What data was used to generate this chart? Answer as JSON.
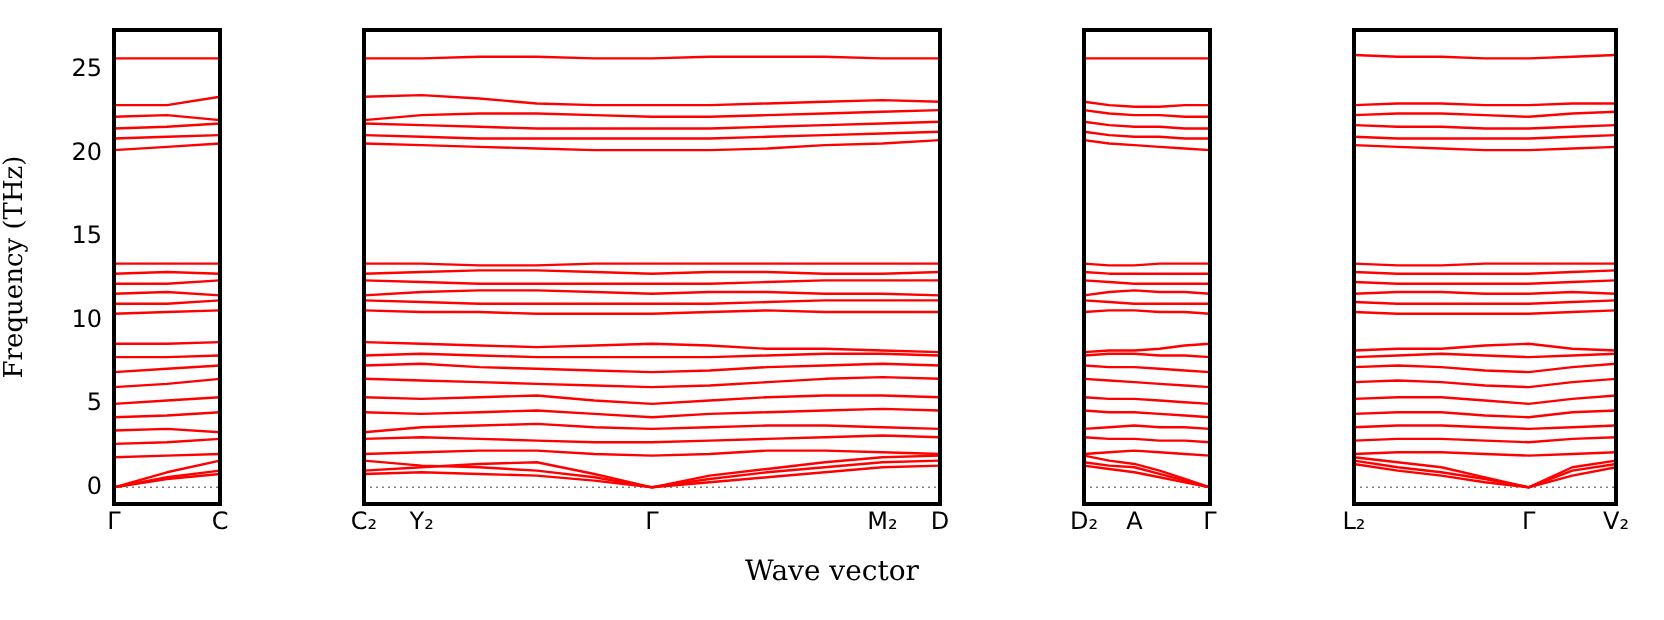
{
  "chart_data": [
    {
      "type": "line",
      "ylabel": "Frequency (THz)",
      "color": "#ff0000",
      "marker": "none",
      "categories": [
        "Γ",
        null,
        "C"
      ],
      "ylim": [
        -1,
        27.4
      ],
      "yticks": [
        0,
        5,
        10,
        15,
        20,
        25
      ],
      "ref_lines": [
        {
          "axis": "y",
          "value": 0,
          "color": "#808080",
          "line_style": "dotted"
        }
      ],
      "series": [
        {
          "values": [
            0,
            0.9,
            1.6
          ]
        },
        {
          "values": [
            0,
            0.5,
            0.8
          ]
        },
        {
          "values": [
            0,
            0.6,
            1.0
          ]
        },
        {
          "values": [
            1.8,
            1.9,
            2.0
          ]
        },
        {
          "values": [
            2.6,
            2.7,
            2.9
          ]
        },
        {
          "values": [
            3.4,
            3.5,
            3.3
          ]
        },
        {
          "values": [
            4.2,
            4.3,
            4.5
          ]
        },
        {
          "values": [
            5.0,
            5.2,
            5.4
          ]
        },
        {
          "values": [
            6.0,
            6.2,
            6.5
          ]
        },
        {
          "values": [
            6.9,
            7.1,
            7.3
          ]
        },
        {
          "values": [
            7.8,
            7.8,
            7.9
          ]
        },
        {
          "values": [
            8.6,
            8.6,
            8.7
          ]
        },
        {
          "values": [
            10.4,
            10.5,
            10.6
          ]
        },
        {
          "values": [
            11.0,
            11.0,
            11.2
          ]
        },
        {
          "values": [
            11.6,
            11.7,
            11.5
          ]
        },
        {
          "values": [
            12.2,
            12.2,
            12.4
          ]
        },
        {
          "values": [
            12.8,
            12.9,
            12.8
          ]
        },
        {
          "values": [
            13.4,
            13.4,
            13.4
          ]
        },
        {
          "values": [
            20.2,
            20.4,
            20.6
          ]
        },
        {
          "values": [
            20.9,
            21.0,
            21.1
          ]
        },
        {
          "values": [
            21.5,
            21.6,
            21.8
          ]
        },
        {
          "values": [
            22.2,
            22.3,
            22.0
          ]
        },
        {
          "values": [
            22.9,
            22.9,
            23.4
          ]
        },
        {
          "values": [
            25.7,
            25.7,
            25.7
          ]
        }
      ]
    },
    {
      "type": "line",
      "xlabel": "Wave vector",
      "color": "#ff0000",
      "marker": "none",
      "tick_labels": "x",
      "categories": [
        "C₂",
        "Y₂",
        null,
        null,
        null,
        "Γ",
        null,
        null,
        null,
        "M₂",
        "D"
      ],
      "ylim": [
        -1,
        27.4
      ],
      "ref_lines": [
        {
          "axis": "y",
          "value": 0,
          "color": "#808080",
          "line_style": "dotted"
        }
      ],
      "series": [
        {
          "values": [
            1.6,
            1.3,
            1.2,
            1.0,
            0.6,
            0,
            0.5,
            0.9,
            1.2,
            1.5,
            1.6
          ]
        },
        {
          "values": [
            0.8,
            0.9,
            0.8,
            0.7,
            0.4,
            0,
            0.3,
            0.6,
            0.9,
            1.2,
            1.3
          ]
        },
        {
          "values": [
            1.0,
            1.2,
            1.4,
            1.5,
            0.8,
            0,
            0.7,
            1.1,
            1.5,
            1.8,
            1.9
          ]
        },
        {
          "values": [
            2.0,
            2.1,
            2.2,
            2.2,
            2.0,
            1.9,
            2.0,
            2.2,
            2.2,
            2.1,
            2.0
          ]
        },
        {
          "values": [
            2.9,
            3.0,
            2.9,
            2.8,
            2.7,
            2.7,
            2.8,
            2.9,
            3.0,
            3.1,
            3.0
          ]
        },
        {
          "values": [
            3.3,
            3.6,
            3.7,
            3.8,
            3.6,
            3.5,
            3.6,
            3.7,
            3.7,
            3.6,
            3.5
          ]
        },
        {
          "values": [
            4.5,
            4.4,
            4.5,
            4.6,
            4.4,
            4.2,
            4.4,
            4.5,
            4.6,
            4.7,
            4.6
          ]
        },
        {
          "values": [
            5.4,
            5.3,
            5.4,
            5.5,
            5.2,
            5.0,
            5.2,
            5.4,
            5.5,
            5.5,
            5.4
          ]
        },
        {
          "values": [
            6.5,
            6.4,
            6.3,
            6.2,
            6.1,
            6.0,
            6.1,
            6.3,
            6.5,
            6.6,
            6.5
          ]
        },
        {
          "values": [
            7.3,
            7.4,
            7.2,
            7.1,
            7.0,
            6.9,
            7.0,
            7.2,
            7.3,
            7.4,
            7.3
          ]
        },
        {
          "values": [
            7.9,
            8.0,
            7.9,
            7.8,
            7.8,
            7.8,
            7.8,
            7.9,
            8.0,
            8.0,
            7.9
          ]
        },
        {
          "values": [
            8.7,
            8.6,
            8.5,
            8.4,
            8.5,
            8.6,
            8.5,
            8.3,
            8.3,
            8.2,
            8.1
          ]
        },
        {
          "values": [
            10.6,
            10.5,
            10.5,
            10.4,
            10.4,
            10.4,
            10.5,
            10.6,
            10.5,
            10.5,
            10.5
          ]
        },
        {
          "values": [
            11.2,
            11.1,
            11.0,
            11.0,
            11.0,
            11.0,
            11.0,
            11.1,
            11.2,
            11.2,
            11.2
          ]
        },
        {
          "values": [
            11.5,
            11.7,
            11.8,
            11.8,
            11.7,
            11.6,
            11.7,
            11.7,
            11.6,
            11.6,
            11.5
          ]
        },
        {
          "values": [
            12.4,
            12.3,
            12.2,
            12.2,
            12.2,
            12.2,
            12.2,
            12.3,
            12.4,
            12.4,
            12.4
          ]
        },
        {
          "values": [
            12.8,
            12.9,
            13.0,
            13.0,
            12.9,
            12.8,
            12.9,
            12.9,
            12.8,
            12.8,
            12.9
          ]
        },
        {
          "values": [
            13.4,
            13.4,
            13.3,
            13.3,
            13.4,
            13.4,
            13.4,
            13.4,
            13.4,
            13.4,
            13.4
          ]
        },
        {
          "values": [
            20.6,
            20.5,
            20.4,
            20.3,
            20.2,
            20.2,
            20.2,
            20.3,
            20.5,
            20.6,
            20.8
          ]
        },
        {
          "values": [
            21.1,
            21.0,
            20.9,
            20.9,
            20.9,
            20.9,
            20.9,
            21.0,
            21.1,
            21.2,
            21.3
          ]
        },
        {
          "values": [
            21.8,
            21.7,
            21.6,
            21.5,
            21.5,
            21.5,
            21.5,
            21.6,
            21.7,
            21.8,
            21.9
          ]
        },
        {
          "values": [
            22.0,
            22.3,
            22.4,
            22.4,
            22.3,
            22.2,
            22.2,
            22.3,
            22.4,
            22.5,
            22.6
          ]
        },
        {
          "values": [
            23.4,
            23.5,
            23.3,
            23.0,
            22.9,
            22.9,
            22.9,
            23.0,
            23.1,
            23.2,
            23.1
          ]
        },
        {
          "values": [
            25.7,
            25.7,
            25.8,
            25.8,
            25.7,
            25.7,
            25.8,
            25.8,
            25.8,
            25.7,
            25.7
          ]
        }
      ]
    },
    {
      "type": "line",
      "color": "#ff0000",
      "marker": "none",
      "tick_labels": "x",
      "categories": [
        "D₂",
        null,
        "A",
        null,
        null,
        "Γ"
      ],
      "ylim": [
        -1,
        27.4
      ],
      "ref_lines": [
        {
          "axis": "y",
          "value": 0,
          "color": "#808080",
          "line_style": "dotted"
        }
      ],
      "series": [
        {
          "values": [
            1.5,
            1.3,
            1.2,
            0.8,
            0.4,
            0
          ]
        },
        {
          "values": [
            1.3,
            1.1,
            0.9,
            0.6,
            0.3,
            0
          ]
        },
        {
          "values": [
            1.9,
            1.6,
            1.4,
            1.0,
            0.5,
            0
          ]
        },
        {
          "values": [
            2.0,
            2.1,
            2.2,
            2.1,
            2.0,
            1.9
          ]
        },
        {
          "values": [
            3.0,
            2.9,
            2.9,
            2.8,
            2.8,
            2.7
          ]
        },
        {
          "values": [
            3.5,
            3.6,
            3.7,
            3.6,
            3.6,
            3.5
          ]
        },
        {
          "values": [
            4.6,
            4.5,
            4.5,
            4.4,
            4.3,
            4.2
          ]
        },
        {
          "values": [
            5.4,
            5.3,
            5.3,
            5.2,
            5.1,
            5.0
          ]
        },
        {
          "values": [
            6.5,
            6.4,
            6.3,
            6.2,
            6.1,
            6.0
          ]
        },
        {
          "values": [
            7.3,
            7.2,
            7.2,
            7.1,
            7.0,
            6.9
          ]
        },
        {
          "values": [
            7.9,
            8.0,
            8.0,
            7.9,
            7.9,
            7.8
          ]
        },
        {
          "values": [
            8.1,
            8.2,
            8.2,
            8.3,
            8.5,
            8.6
          ]
        },
        {
          "values": [
            10.5,
            10.6,
            10.6,
            10.5,
            10.5,
            10.4
          ]
        },
        {
          "values": [
            11.2,
            11.1,
            11.0,
            11.0,
            11.0,
            11.0
          ]
        },
        {
          "values": [
            11.5,
            11.7,
            11.8,
            11.7,
            11.7,
            11.6
          ]
        },
        {
          "values": [
            12.4,
            12.3,
            12.2,
            12.2,
            12.2,
            12.2
          ]
        },
        {
          "values": [
            12.9,
            12.8,
            12.8,
            12.8,
            12.8,
            12.8
          ]
        },
        {
          "values": [
            13.4,
            13.3,
            13.3,
            13.4,
            13.4,
            13.4
          ]
        },
        {
          "values": [
            20.8,
            20.6,
            20.5,
            20.4,
            20.3,
            20.2
          ]
        },
        {
          "values": [
            21.3,
            21.1,
            21.0,
            21.0,
            20.9,
            20.9
          ]
        },
        {
          "values": [
            21.9,
            21.7,
            21.6,
            21.6,
            21.5,
            21.5
          ]
        },
        {
          "values": [
            22.6,
            22.4,
            22.3,
            22.3,
            22.2,
            22.2
          ]
        },
        {
          "values": [
            23.1,
            22.9,
            22.8,
            22.8,
            22.9,
            22.9
          ]
        },
        {
          "values": [
            25.7,
            25.7,
            25.7,
            25.7,
            25.7,
            25.7
          ]
        }
      ]
    },
    {
      "type": "line",
      "color": "#ff0000",
      "marker": "none",
      "tick_labels": "x",
      "categories": [
        "L₂",
        null,
        null,
        null,
        "Γ",
        null,
        "V₂"
      ],
      "ylim": [
        -1,
        27.4
      ],
      "ref_lines": [
        {
          "axis": "y",
          "value": 0,
          "color": "#808080",
          "line_style": "dotted"
        }
      ],
      "series": [
        {
          "values": [
            1.6,
            1.2,
            0.9,
            0.5,
            0,
            1.0,
            1.4
          ]
        },
        {
          "values": [
            1.4,
            1.0,
            0.7,
            0.3,
            0,
            0.7,
            1.2
          ]
        },
        {
          "values": [
            1.8,
            1.5,
            1.2,
            0.6,
            0,
            1.2,
            1.6
          ]
        },
        {
          "values": [
            2.0,
            2.1,
            2.1,
            2.0,
            1.9,
            2.0,
            2.1
          ]
        },
        {
          "values": [
            2.8,
            2.9,
            2.9,
            2.8,
            2.7,
            2.9,
            3.0
          ]
        },
        {
          "values": [
            3.6,
            3.7,
            3.7,
            3.6,
            3.5,
            3.6,
            3.7
          ]
        },
        {
          "values": [
            4.4,
            4.5,
            4.5,
            4.3,
            4.2,
            4.5,
            4.6
          ]
        },
        {
          "values": [
            5.3,
            5.4,
            5.4,
            5.2,
            5.0,
            5.3,
            5.5
          ]
        },
        {
          "values": [
            6.3,
            6.4,
            6.3,
            6.1,
            6.0,
            6.3,
            6.5
          ]
        },
        {
          "values": [
            7.2,
            7.3,
            7.2,
            7.0,
            6.9,
            7.2,
            7.4
          ]
        },
        {
          "values": [
            7.8,
            7.9,
            8.0,
            7.9,
            7.8,
            7.9,
            8.0
          ]
        },
        {
          "values": [
            8.2,
            8.3,
            8.3,
            8.5,
            8.6,
            8.3,
            8.2
          ]
        },
        {
          "values": [
            10.5,
            10.4,
            10.4,
            10.4,
            10.4,
            10.5,
            10.6
          ]
        },
        {
          "values": [
            11.1,
            11.0,
            11.0,
            11.0,
            11.0,
            11.1,
            11.2
          ]
        },
        {
          "values": [
            11.6,
            11.7,
            11.7,
            11.6,
            11.6,
            11.7,
            11.6
          ]
        },
        {
          "values": [
            12.3,
            12.2,
            12.2,
            12.2,
            12.2,
            12.3,
            12.4
          ]
        },
        {
          "values": [
            12.9,
            12.8,
            12.8,
            12.8,
            12.8,
            12.9,
            13.0
          ]
        },
        {
          "values": [
            13.4,
            13.3,
            13.3,
            13.4,
            13.4,
            13.4,
            13.4
          ]
        },
        {
          "values": [
            20.5,
            20.4,
            20.3,
            20.2,
            20.2,
            20.3,
            20.4
          ]
        },
        {
          "values": [
            21.0,
            20.9,
            20.9,
            20.9,
            20.9,
            21.0,
            21.1
          ]
        },
        {
          "values": [
            21.7,
            21.6,
            21.6,
            21.5,
            21.5,
            21.6,
            21.7
          ]
        },
        {
          "values": [
            22.3,
            22.4,
            22.4,
            22.3,
            22.2,
            22.4,
            22.5
          ]
        },
        {
          "values": [
            22.9,
            23.0,
            23.0,
            22.9,
            22.9,
            23.0,
            23.0
          ]
        },
        {
          "values": [
            25.9,
            25.8,
            25.8,
            25.7,
            25.7,
            25.8,
            25.9
          ]
        }
      ]
    }
  ]
}
